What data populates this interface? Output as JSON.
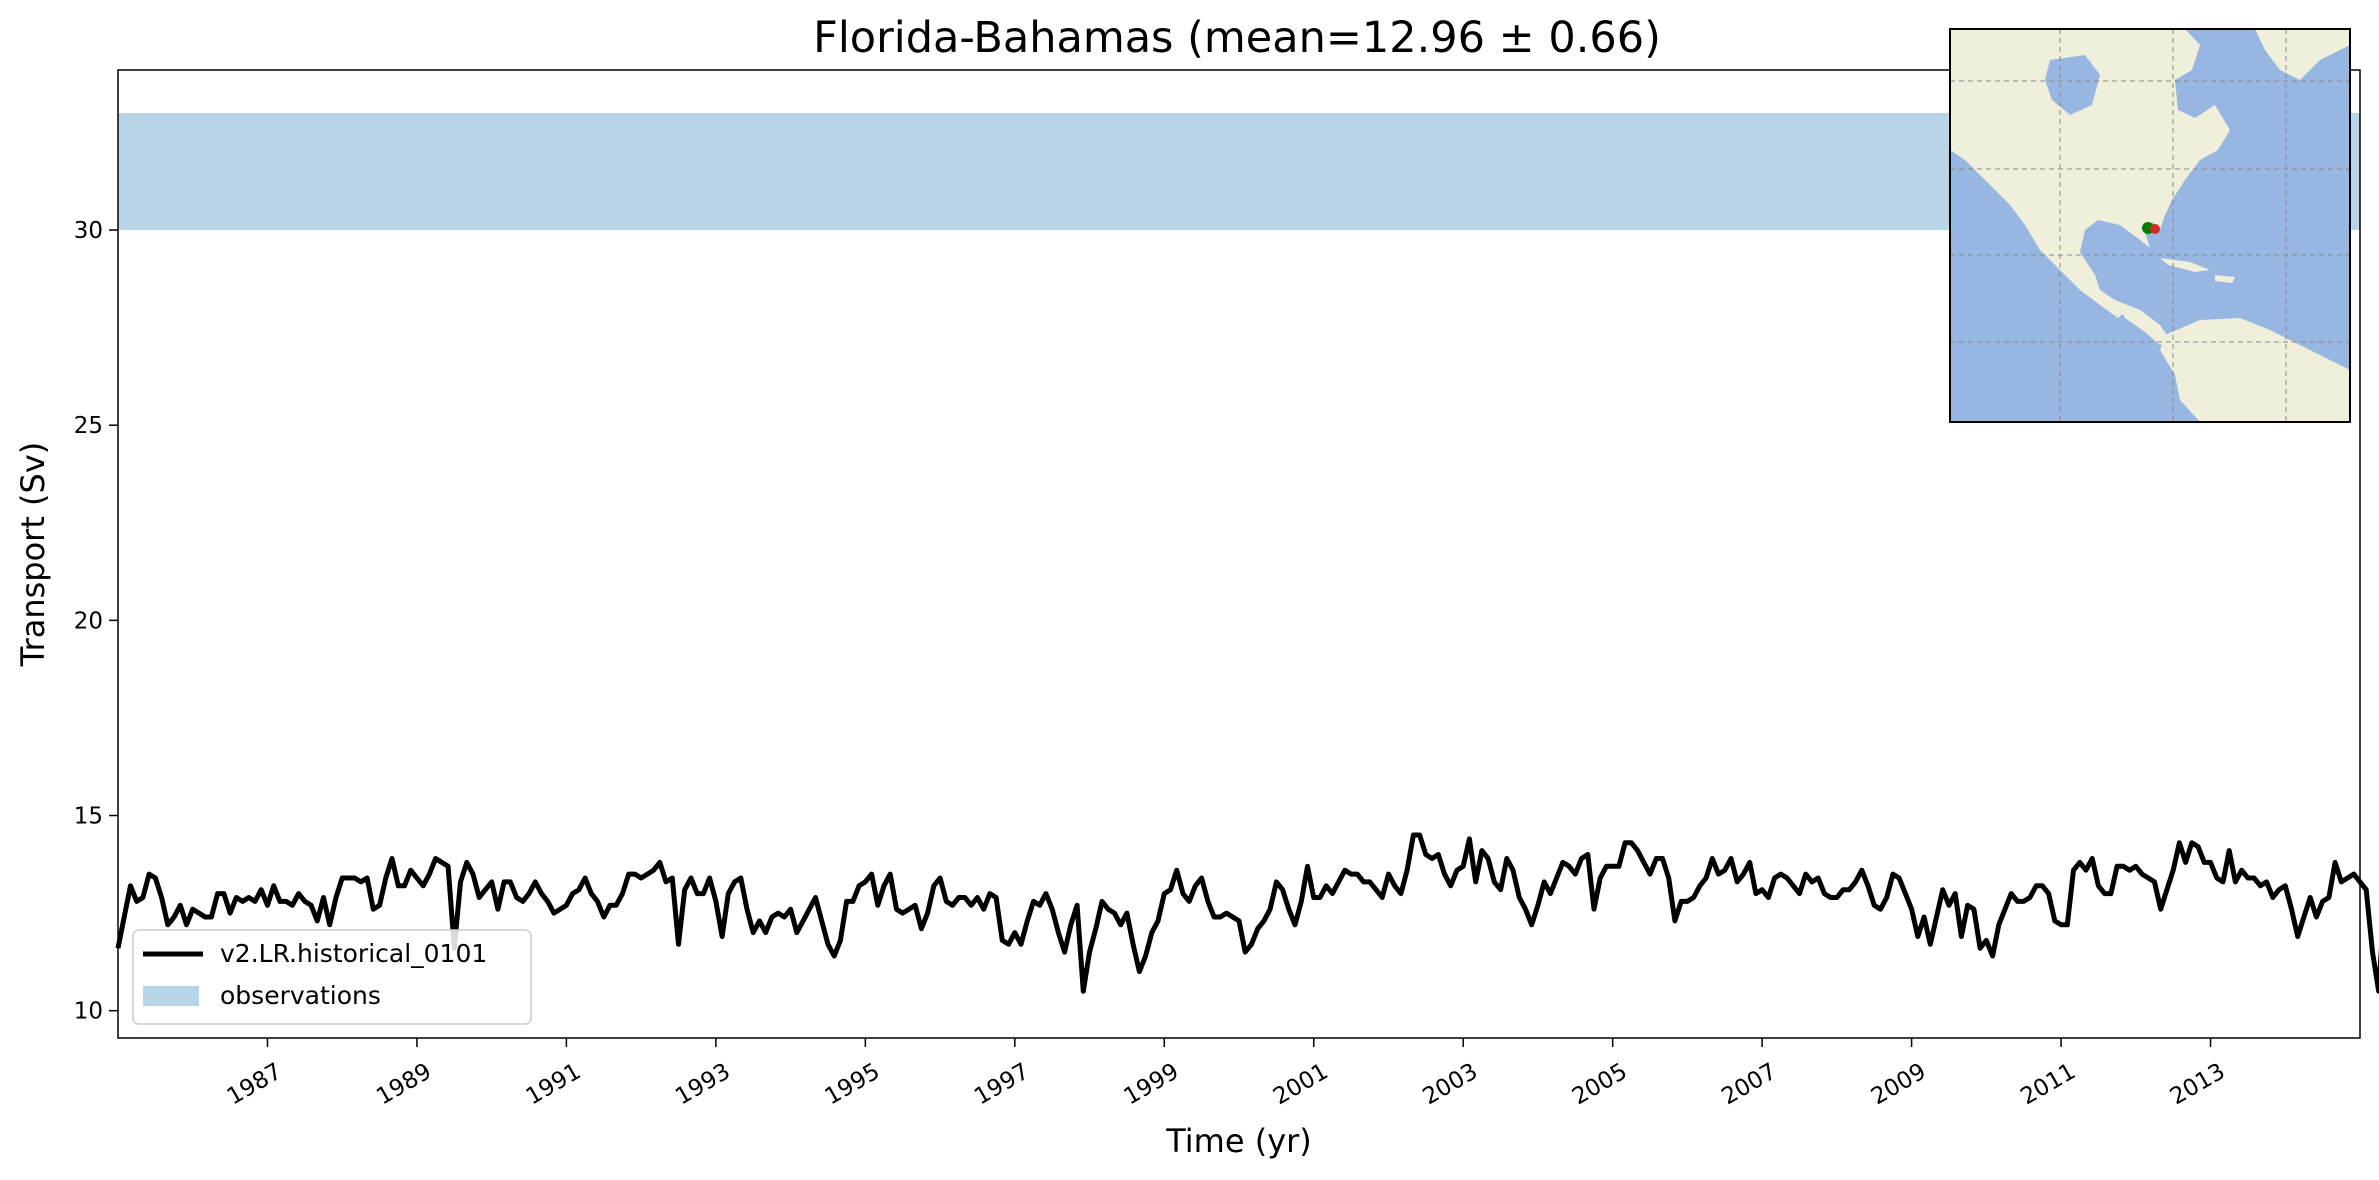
{
  "chart_data": {
    "type": "line",
    "title": "Florida-Bahamas (mean=12.96 ± 0.66)",
    "xlabel": "Time (yr)",
    "ylabel": "Transport (Sv)",
    "xlim": [
      1985.0,
      2015.0
    ],
    "ylim": [
      9.3,
      34.1
    ],
    "x_ticks": [
      "1987",
      "1989",
      "1991",
      "1993",
      "1995",
      "1997",
      "1999",
      "2001",
      "2003",
      "2005",
      "2007",
      "2009",
      "2011",
      "2013"
    ],
    "y_ticks": [
      "10",
      "15",
      "20",
      "25",
      "30"
    ],
    "observations": {
      "name": "observations",
      "range": [
        30,
        33
      ],
      "color": "#b9d6e8"
    },
    "series": [
      {
        "name": "v2.LR.historical_0101",
        "color": "#000000",
        "start_year": 1985.0,
        "step_months": 1,
        "values": [
          11.6,
          12.4,
          13.2,
          12.8,
          12.9,
          13.5,
          13.4,
          12.9,
          12.2,
          12.4,
          12.7,
          12.2,
          12.6,
          12.5,
          12.4,
          12.4,
          13.0,
          13.0,
          12.5,
          12.9,
          12.8,
          12.9,
          12.8,
          13.1,
          12.7,
          13.2,
          12.8,
          12.8,
          12.7,
          13.0,
          12.8,
          12.7,
          12.3,
          12.9,
          12.2,
          12.9,
          13.4,
          13.4,
          13.4,
          13.3,
          13.4,
          12.6,
          12.7,
          13.4,
          13.9,
          13.2,
          13.2,
          13.6,
          13.4,
          13.2,
          13.5,
          13.9,
          13.8,
          13.7,
          11.6,
          13.3,
          13.8,
          13.5,
          12.9,
          13.1,
          13.3,
          12.6,
          13.3,
          13.3,
          12.9,
          12.8,
          13.0,
          13.3,
          13.0,
          12.8,
          12.5,
          12.6,
          12.7,
          13.0,
          13.1,
          13.4,
          13.0,
          12.8,
          12.4,
          12.7,
          12.7,
          13.0,
          13.5,
          13.5,
          13.4,
          13.5,
          13.6,
          13.8,
          13.3,
          13.4,
          11.7,
          13.1,
          13.4,
          13.0,
          13.0,
          13.4,
          12.8,
          11.9,
          13.0,
          13.3,
          13.4,
          12.6,
          12.0,
          12.3,
          12.0,
          12.4,
          12.5,
          12.4,
          12.6,
          12.0,
          12.3,
          12.6,
          12.9,
          12.3,
          11.7,
          11.4,
          11.8,
          12.8,
          12.8,
          13.2,
          13.3,
          13.5,
          12.7,
          13.2,
          13.5,
          12.6,
          12.5,
          12.6,
          12.7,
          12.1,
          12.5,
          13.2,
          13.4,
          12.8,
          12.7,
          12.9,
          12.9,
          12.7,
          12.9,
          12.6,
          13.0,
          12.9,
          11.8,
          11.7,
          12.0,
          11.7,
          12.3,
          12.8,
          12.7,
          13.0,
          12.6,
          12.0,
          11.5,
          12.2,
          12.7,
          10.5,
          11.5,
          12.1,
          12.8,
          12.6,
          12.5,
          12.2,
          12.5,
          11.7,
          11.0,
          11.4,
          12.0,
          12.3,
          13.0,
          13.1,
          13.6,
          13.0,
          12.8,
          13.2,
          13.4,
          12.8,
          12.4,
          12.4,
          12.5,
          12.4,
          12.3,
          11.5,
          11.7,
          12.1,
          12.3,
          12.6,
          13.3,
          13.1,
          12.6,
          12.2,
          12.8,
          13.7,
          12.9,
          12.9,
          13.2,
          13.0,
          13.3,
          13.6,
          13.5,
          13.5,
          13.3,
          13.3,
          13.1,
          12.9,
          13.5,
          13.2,
          13.0,
          13.6,
          14.5,
          14.5,
          14.0,
          13.9,
          14.0,
          13.5,
          13.2,
          13.6,
          13.7,
          14.4,
          13.3,
          14.1,
          13.9,
          13.3,
          13.1,
          13.9,
          13.6,
          12.9,
          12.6,
          12.2,
          12.7,
          13.3,
          13.0,
          13.4,
          13.8,
          13.7,
          13.5,
          13.9,
          14.0,
          12.6,
          13.4,
          13.7,
          13.7,
          13.7,
          14.3,
          14.3,
          14.1,
          13.8,
          13.5,
          13.9,
          13.9,
          13.4,
          12.3,
          12.8,
          12.8,
          12.9,
          13.2,
          13.4,
          13.9,
          13.5,
          13.6,
          13.9,
          13.3,
          13.5,
          13.8,
          13.0,
          13.1,
          12.9,
          13.4,
          13.5,
          13.4,
          13.2,
          13.0,
          13.5,
          13.3,
          13.4,
          13.0,
          12.9,
          12.9,
          13.1,
          13.1,
          13.3,
          13.6,
          13.2,
          12.7,
          12.6,
          12.9,
          13.5,
          13.4,
          13.0,
          12.6,
          11.9,
          12.4,
          11.7,
          12.4,
          13.1,
          12.7,
          13.0,
          11.9,
          12.7,
          12.6,
          11.6,
          11.8,
          11.4,
          12.2,
          12.6,
          13.0,
          12.8,
          12.8,
          12.9,
          13.2,
          13.2,
          13.0,
          12.3,
          12.2,
          12.2,
          13.6,
          13.8,
          13.6,
          13.9,
          13.2,
          13.0,
          13.0,
          13.7,
          13.7,
          13.6,
          13.7,
          13.5,
          13.4,
          13.3,
          12.6,
          13.1,
          13.6,
          14.3,
          13.8,
          14.3,
          14.2,
          13.8,
          13.8,
          13.4,
          13.3,
          14.1,
          13.3,
          13.6,
          13.4,
          13.4,
          13.2,
          13.3,
          12.9,
          13.1,
          13.2,
          12.6,
          11.9,
          12.4,
          12.9,
          12.4,
          12.8,
          12.9,
          13.8,
          13.3,
          13.4,
          13.5,
          13.3,
          13.1,
          11.5,
          10.5,
          13.0
        ]
      }
    ],
    "legend": {
      "placement": "lower-left",
      "entries": [
        "v2.LR.historical_0101",
        "observations"
      ]
    },
    "grid": false
  },
  "inset_map": {
    "region": "North and South Atlantic",
    "land_color": "#efefdb",
    "ocean_color": "#97b6e1",
    "markers": [
      "#008000",
      "#d62728"
    ]
  }
}
